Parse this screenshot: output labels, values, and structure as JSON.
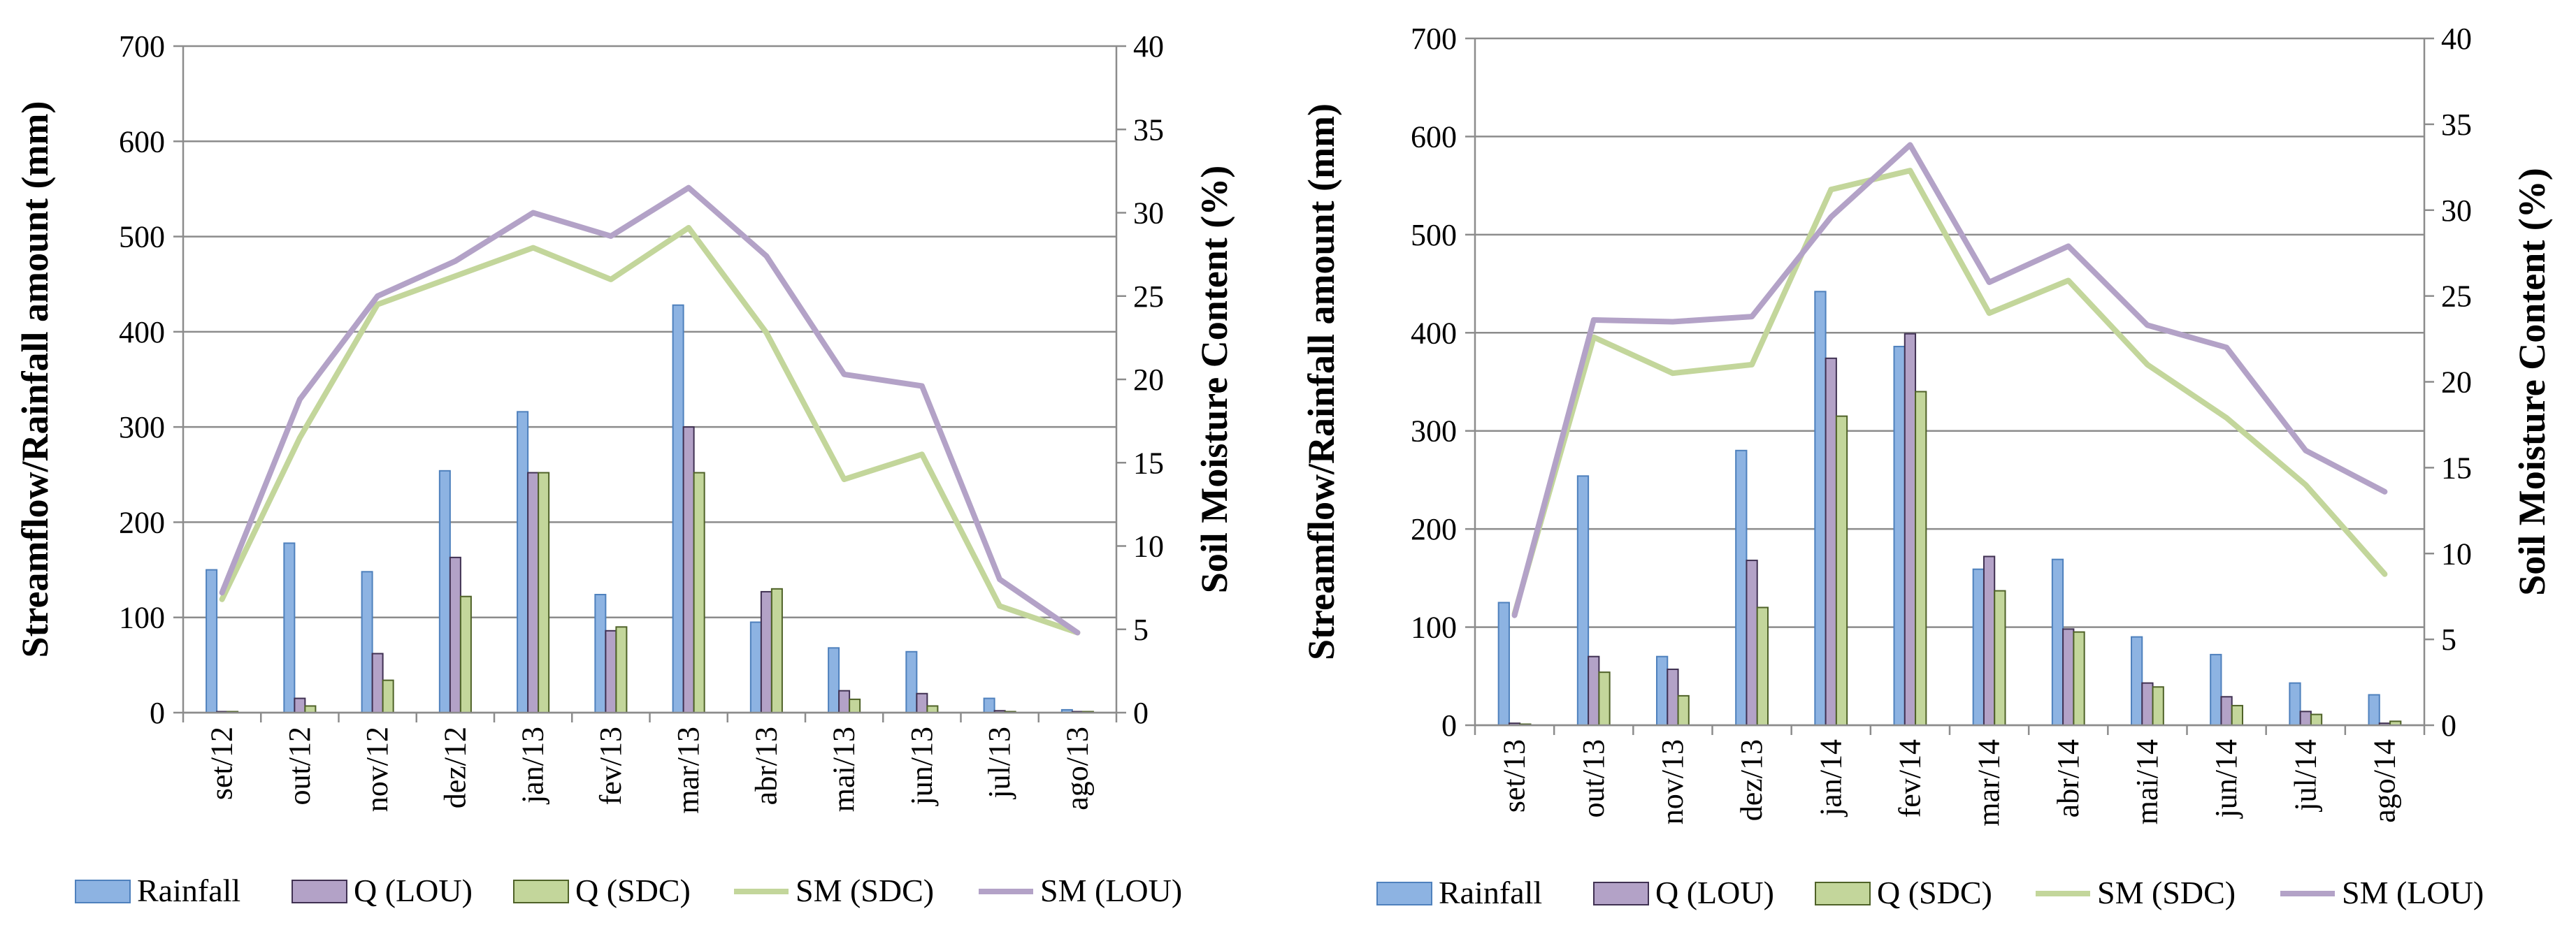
{
  "chart_data": [
    {
      "type": "bar",
      "categories": [
        "set/12",
        "out/12",
        "nov/12",
        "dez/12",
        "jan/13",
        "fev/13",
        "mar/13",
        "abr/13",
        "mai/13",
        "jun/13",
        "jul/13",
        "ago/13"
      ],
      "ylabel": "Streamflow/Rainfall amount (mm)",
      "y2label": "Soil Moisture Content (%)",
      "ylim": [
        0,
        700
      ],
      "y2lim": [
        0,
        40
      ],
      "yticks": [
        "0",
        "100",
        "200",
        "300",
        "400",
        "500",
        "600",
        "700"
      ],
      "y2ticks": [
        "0",
        "5",
        "10",
        "15",
        "20",
        "25",
        "30",
        "35",
        "40"
      ],
      "series": [
        {
          "name": "Rainfall",
          "kind": "bar",
          "axis": "left",
          "fill": "#8db3e2",
          "stroke": "#4f81bd",
          "values": [
            150,
            178,
            148,
            254,
            316,
            124,
            428,
            95,
            68,
            64,
            15,
            3
          ]
        },
        {
          "name": "Q (LOU)",
          "kind": "bar",
          "axis": "left",
          "fill": "#b3a2c7",
          "stroke": "#403152",
          "values": [
            1,
            15,
            62,
            163,
            252,
            86,
            300,
            127,
            23,
            20,
            2,
            1
          ]
        },
        {
          "name": "Q (SDC)",
          "kind": "bar",
          "axis": "left",
          "fill": "#c3d69b",
          "stroke": "#4f6228",
          "values": [
            1,
            7,
            34,
            122,
            252,
            90,
            252,
            130,
            14,
            7,
            1,
            1
          ]
        },
        {
          "name": "SM (SDC)",
          "kind": "line",
          "axis": "right",
          "color": "#c3d69b",
          "values": [
            6.8,
            16.5,
            24.5,
            26.2,
            27.9,
            26,
            29.1,
            22.8,
            14,
            15.5,
            6.4,
            4.8
          ]
        },
        {
          "name": "SM (LOU)",
          "kind": "line",
          "axis": "right",
          "color": "#b3a2c7",
          "values": [
            7.2,
            18.8,
            25,
            27.1,
            30,
            28.6,
            31.5,
            27.4,
            20.3,
            19.6,
            8,
            4.8
          ]
        }
      ],
      "legend": [
        "Rainfall",
        "Q (LOU)",
        "Q (SDC)",
        "SM (SDC)",
        "SM (LOU)"
      ]
    },
    {
      "type": "bar",
      "categories": [
        "set/13",
        "out/13",
        "nov/13",
        "dez/13",
        "jan/14",
        "fev/14",
        "mar/14",
        "abr/14",
        "mai/14",
        "jun/14",
        "jul/14",
        "ago/14"
      ],
      "ylabel": "Streamflow/Rainfall amount (mm)",
      "y2label": "Soil Moisture Content (%)",
      "ylim": [
        0,
        700
      ],
      "y2lim": [
        0,
        40
      ],
      "yticks": [
        "0",
        "100",
        "200",
        "300",
        "400",
        "500",
        "600",
        "700"
      ],
      "y2ticks": [
        "0",
        "5",
        "10",
        "15",
        "20",
        "25",
        "30",
        "35",
        "40"
      ],
      "series": [
        {
          "name": "Rainfall",
          "kind": "bar",
          "axis": "left",
          "fill": "#8db3e2",
          "stroke": "#4f81bd",
          "values": [
            125,
            254,
            70,
            280,
            442,
            386,
            159,
            169,
            90,
            72,
            43,
            31
          ]
        },
        {
          "name": "Q (LOU)",
          "kind": "bar",
          "axis": "left",
          "fill": "#b3a2c7",
          "stroke": "#403152",
          "values": [
            2,
            70,
            57,
            168,
            374,
            399,
            172,
            98,
            43,
            29,
            14,
            2
          ]
        },
        {
          "name": "Q (SDC)",
          "kind": "bar",
          "axis": "left",
          "fill": "#c3d69b",
          "stroke": "#4f6228",
          "values": [
            1,
            54,
            30,
            120,
            315,
            340,
            137,
            95,
            39,
            20,
            11,
            4
          ]
        },
        {
          "name": "SM (SDC)",
          "kind": "line",
          "axis": "right",
          "color": "#c3d69b",
          "values": [
            6.5,
            22.6,
            20.5,
            21,
            31.2,
            32.3,
            24,
            25.9,
            21,
            17.9,
            14,
            8.8
          ]
        },
        {
          "name": "SM (LOU)",
          "kind": "line",
          "axis": "right",
          "color": "#b3a2c7",
          "values": [
            6.4,
            23.6,
            23.5,
            23.8,
            29.6,
            33.8,
            25.8,
            27.9,
            23.3,
            22,
            16,
            13.6
          ]
        }
      ],
      "legend": [
        "Rainfall",
        "Q (LOU)",
        "Q (SDC)",
        "SM (SDC)",
        "SM (LOU)"
      ]
    }
  ]
}
